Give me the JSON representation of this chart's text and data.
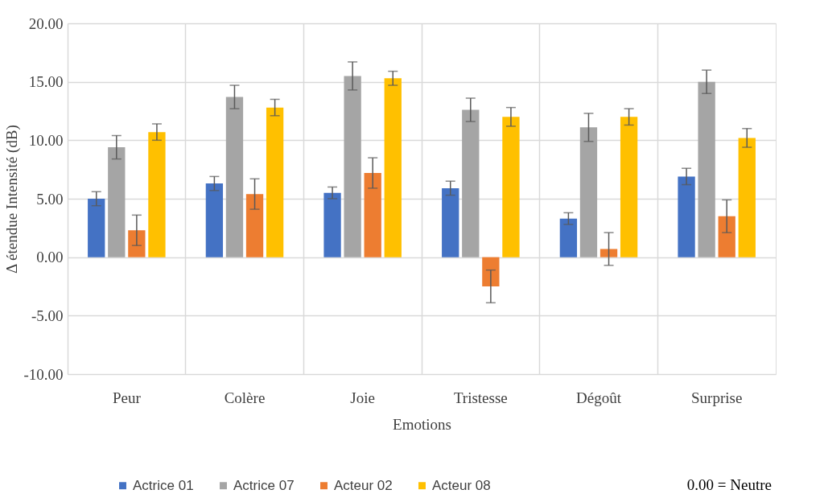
{
  "chart_data": {
    "type": "bar",
    "xlabel": "Emotions",
    "ylabel": "Δ étendue Intensité (dB)",
    "categories": [
      "Peur",
      "Colère",
      "Joie",
      "Tristesse",
      "Dégoût",
      "Surprise"
    ],
    "series": [
      {
        "name": "Actrice 01",
        "color": "#4472c4",
        "values": [
          5.0,
          6.3,
          5.5,
          5.9,
          3.3,
          6.9
        ],
        "errors": [
          0.6,
          0.6,
          0.5,
          0.6,
          0.5,
          0.7
        ]
      },
      {
        "name": "Actrice 07",
        "color": "#a5a5a5",
        "values": [
          9.4,
          13.7,
          15.5,
          12.6,
          11.1,
          15.0
        ],
        "errors": [
          1.0,
          1.0,
          1.2,
          1.0,
          1.2,
          1.0
        ]
      },
      {
        "name": "Acteur 02",
        "color": "#ed7d31",
        "values": [
          2.3,
          5.4,
          7.2,
          -2.5,
          0.7,
          3.5
        ],
        "errors": [
          1.3,
          1.3,
          1.3,
          1.4,
          1.4,
          1.4
        ]
      },
      {
        "name": "Acteur 08",
        "color": "#ffc000",
        "values": [
          10.7,
          12.8,
          15.3,
          12.0,
          12.0,
          10.2
        ],
        "errors": [
          0.7,
          0.7,
          0.6,
          0.8,
          0.7,
          0.8
        ]
      }
    ],
    "ylim": [
      -10,
      20
    ],
    "yticks": [
      {
        "value": -10,
        "label": "-10.00"
      },
      {
        "value": -5,
        "label": "-5.00"
      },
      {
        "value": 0,
        "label": "0.00"
      },
      {
        "value": 5,
        "label": "5.00"
      },
      {
        "value": 10,
        "label": "10.00"
      },
      {
        "value": 15,
        "label": "15.00"
      },
      {
        "value": 20,
        "label": "20.00"
      }
    ],
    "grid": true,
    "legend": "bottom",
    "annotations": [
      "0.00 = Neutre"
    ]
  }
}
